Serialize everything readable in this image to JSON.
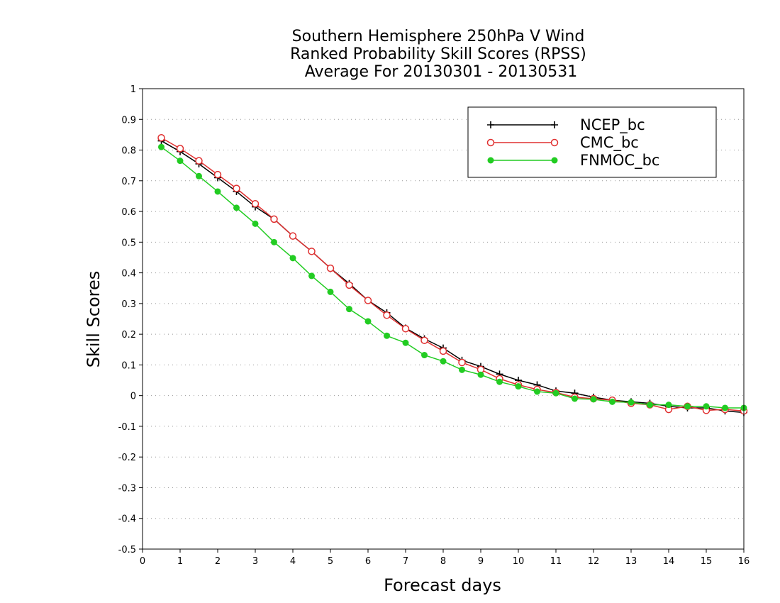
{
  "chart_data": {
    "type": "line",
    "title": [
      "Southern Hemisphere 250hPa V Wind",
      "Ranked Probability Skill Scores (RPSS)",
      "Average For 20130301 - 20130531"
    ],
    "xlabel": "Forecast days",
    "ylabel": "Skill Scores",
    "xlim": [
      0,
      16
    ],
    "ylim": [
      -0.5,
      1
    ],
    "xticks": [
      "0",
      "1",
      "2",
      "3",
      "4",
      "5",
      "6",
      "7",
      "8",
      "9",
      "10",
      "11",
      "12",
      "13",
      "14",
      "15",
      "16"
    ],
    "yticks": [
      "1",
      "0.9",
      "0.8",
      "0.7",
      "0.6",
      "0.5",
      "0.4",
      "0.3",
      "0.2",
      "0.1",
      "0",
      "-0.1",
      "-0.2",
      "-0.3",
      "-0.4",
      "-0.5"
    ],
    "grid": "dotted horizontal",
    "legend_position": "top-right",
    "x": [
      0.5,
      1,
      1.5,
      2,
      2.5,
      3,
      3.5,
      4,
      4.5,
      5,
      5.5,
      6,
      6.5,
      7,
      7.5,
      8,
      8.5,
      9,
      9.5,
      10,
      10.5,
      11,
      11.5,
      12,
      12.5,
      13,
      13.5,
      14,
      14.5,
      15,
      15.5,
      16
    ],
    "series": [
      {
        "name": "NCEP_bc",
        "color": "#000000",
        "marker": "plus",
        "values": [
          0.83,
          0.795,
          0.755,
          0.71,
          0.665,
          0.615,
          0.575,
          0.52,
          0.47,
          0.415,
          0.365,
          0.31,
          0.27,
          0.22,
          0.185,
          0.155,
          0.115,
          0.095,
          0.07,
          0.05,
          0.035,
          0.015,
          0.008,
          -0.005,
          -0.015,
          -0.02,
          -0.025,
          -0.035,
          -0.04,
          -0.04,
          -0.05,
          -0.055
        ]
      },
      {
        "name": "CMC_bc",
        "color": "#e03030",
        "marker": "open-circle",
        "values": [
          0.84,
          0.805,
          0.765,
          0.72,
          0.675,
          0.625,
          0.575,
          0.52,
          0.47,
          0.415,
          0.36,
          0.31,
          0.262,
          0.218,
          0.18,
          0.145,
          0.108,
          0.085,
          0.055,
          0.035,
          0.02,
          0.01,
          -0.005,
          -0.01,
          -0.015,
          -0.025,
          -0.03,
          -0.045,
          -0.035,
          -0.048,
          -0.045,
          -0.05
        ]
      },
      {
        "name": "FNMOC_bc",
        "color": "#22cc22",
        "marker": "filled-circle",
        "values": [
          0.81,
          0.765,
          0.715,
          0.665,
          0.612,
          0.56,
          0.5,
          0.448,
          0.39,
          0.338,
          0.282,
          0.242,
          0.195,
          0.172,
          0.132,
          0.112,
          0.084,
          0.068,
          0.045,
          0.03,
          0.013,
          0.008,
          -0.01,
          -0.012,
          -0.02,
          -0.022,
          -0.03,
          -0.03,
          -0.035,
          -0.035,
          -0.04,
          -0.04
        ]
      }
    ]
  }
}
